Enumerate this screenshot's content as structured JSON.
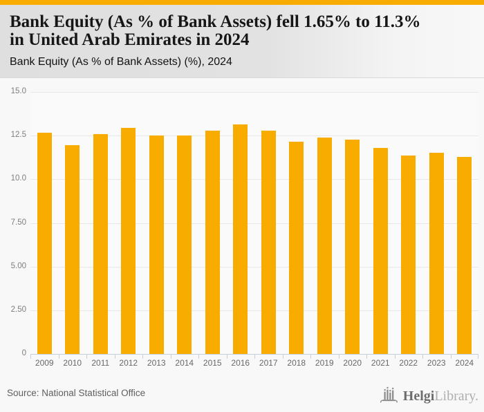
{
  "accent_color": "#F9AC00",
  "header": {
    "title_line1": "Bank Equity (As % of Bank Assets) fell 1.65% to 11.3%",
    "title_line2": "in United Arab Emirates in 2024",
    "subtitle": "Bank Equity (As % of Bank Assets) (%), 2024"
  },
  "chart_data": {
    "type": "bar",
    "title": "Bank Equity (As % of Bank Assets) (%), 2024",
    "categories": [
      "2009",
      "2010",
      "2011",
      "2012",
      "2013",
      "2014",
      "2015",
      "2016",
      "2017",
      "2018",
      "2019",
      "2020",
      "2021",
      "2022",
      "2023",
      "2024"
    ],
    "values": [
      12.65,
      11.95,
      12.6,
      12.95,
      12.5,
      12.5,
      12.8,
      13.15,
      12.8,
      12.15,
      12.4,
      12.25,
      11.8,
      11.35,
      11.5,
      11.3
    ],
    "xlabel": "",
    "ylabel": "",
    "ylim": [
      0,
      15
    ],
    "yticks": [
      15,
      12.5,
      10,
      7.5,
      5,
      2.5,
      0
    ],
    "ytick_labels": [
      "15.0",
      "12.5",
      "10.0",
      "7.50",
      "5.00",
      "2.50",
      "0"
    ],
    "grid": "horizontal",
    "legend": "none",
    "bar_color": "#F9AC00",
    "axis_color": "#C6CFDC",
    "gridline_color": "#E7E7E7"
  },
  "footer": {
    "source": "Source: National Statistical Office",
    "logo_primary": "Helgi",
    "logo_secondary": "Library."
  }
}
